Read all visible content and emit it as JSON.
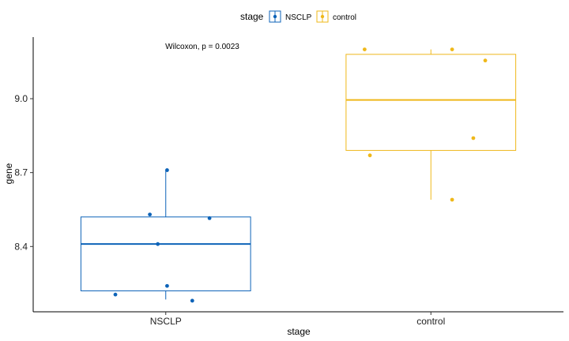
{
  "chart_data": {
    "type": "boxplot",
    "title": "",
    "xlabel": "stage",
    "ylabel": "gene",
    "categories": [
      "NSCLP",
      "control"
    ],
    "yticks": [
      8.4,
      8.7,
      9.0
    ],
    "ytick_labels": [
      "8.4",
      "8.7",
      "9.0"
    ],
    "ylim": [
      8.135,
      9.25
    ],
    "legend": {
      "title": "stage",
      "position": "top",
      "entries": [
        "NSCLP",
        "control"
      ]
    },
    "annotation": "Wilcoxon, p = 0.0023",
    "colors": {
      "NSCLP": "#0d63b8",
      "control": "#efb81a"
    },
    "series": [
      {
        "name": "NSCLP",
        "box": {
          "q1": 8.22,
          "median": 8.41,
          "q3": 8.52,
          "whisker_low": 8.185,
          "whisker_high": 8.71
        },
        "points": [
          {
            "x_jitter": -0.19,
            "y": 8.205
          },
          {
            "x_jitter": 0.1,
            "y": 8.18
          },
          {
            "x_jitter": 0.005,
            "y": 8.24
          },
          {
            "x_jitter": -0.03,
            "y": 8.41
          },
          {
            "x_jitter": -0.06,
            "y": 8.53
          },
          {
            "x_jitter": 0.165,
            "y": 8.515
          },
          {
            "x_jitter": 0.005,
            "y": 8.71
          }
        ]
      },
      {
        "name": "control",
        "box": {
          "q1": 8.79,
          "median": 8.995,
          "q3": 9.18,
          "whisker_low": 8.59,
          "whisker_high": 9.2
        },
        "points": [
          {
            "x_jitter": -0.25,
            "y": 9.2
          },
          {
            "x_jitter": 0.08,
            "y": 9.2
          },
          {
            "x_jitter": 0.205,
            "y": 9.155
          },
          {
            "x_jitter": 0.16,
            "y": 8.84
          },
          {
            "x_jitter": -0.23,
            "y": 8.77
          },
          {
            "x_jitter": 0.08,
            "y": 8.59
          }
        ]
      }
    ]
  }
}
